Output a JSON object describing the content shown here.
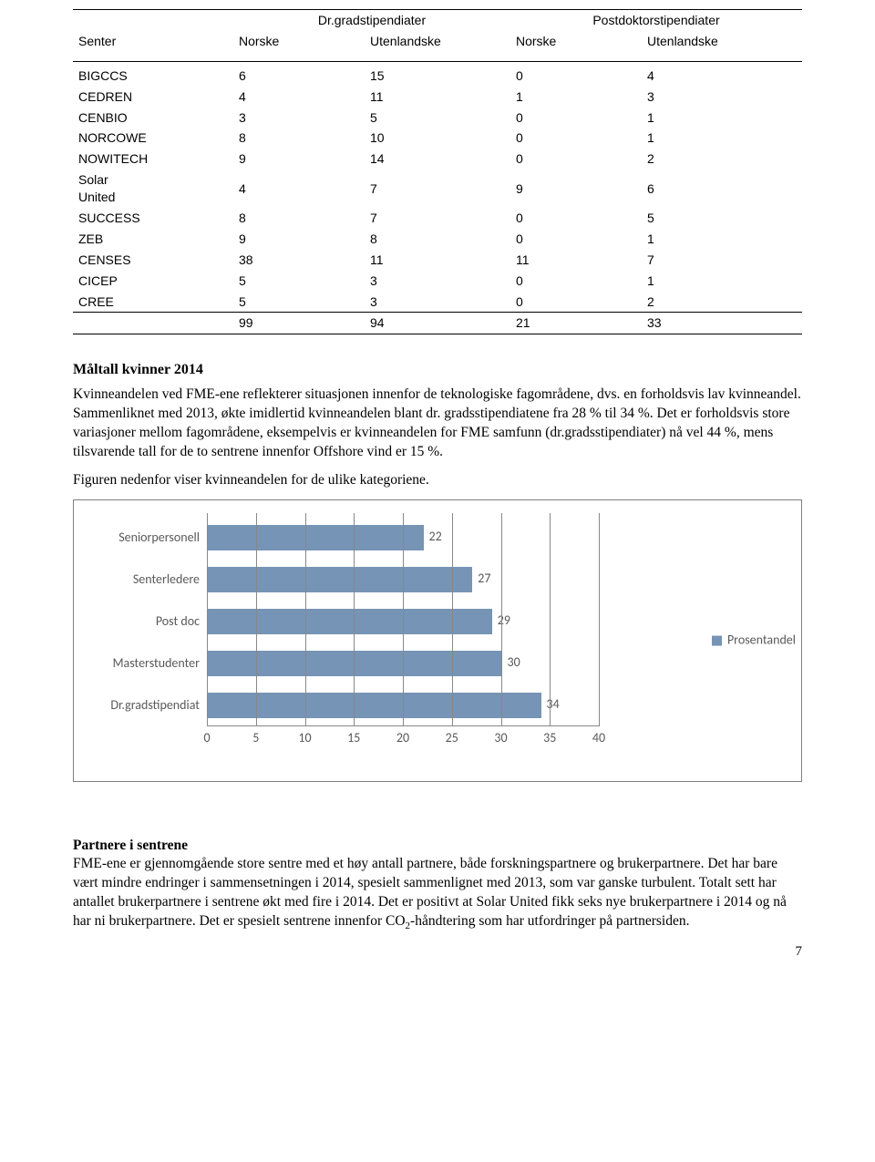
{
  "table": {
    "group_headers": [
      "Dr.gradstipendiater",
      "Postdoktorstipendiater"
    ],
    "sub_headers": [
      "Senter",
      "Norske",
      "Utenlandske",
      "Norske",
      "Utenlandske"
    ],
    "rows": [
      {
        "name": "BIGCCS",
        "v": [
          6,
          15,
          0,
          4
        ]
      },
      {
        "name": "CEDREN",
        "v": [
          4,
          11,
          1,
          3
        ]
      },
      {
        "name": "CENBIO",
        "v": [
          3,
          5,
          0,
          1
        ]
      },
      {
        "name": "NORCOWE",
        "v": [
          8,
          10,
          0,
          1
        ]
      },
      {
        "name": "NOWITECH",
        "v": [
          9,
          14,
          0,
          2
        ]
      },
      {
        "name": "Solar United",
        "v": [
          4,
          7,
          9,
          6
        ]
      },
      {
        "name": "SUCCESS",
        "v": [
          8,
          7,
          0,
          5
        ]
      },
      {
        "name": "ZEB",
        "v": [
          9,
          8,
          0,
          1
        ]
      },
      {
        "name": "CENSES",
        "v": [
          38,
          11,
          11,
          7
        ]
      },
      {
        "name": "CICEP",
        "v": [
          5,
          3,
          0,
          1
        ]
      },
      {
        "name": "CREE",
        "v": [
          5,
          3,
          0,
          2
        ]
      }
    ],
    "totals": [
      99,
      94,
      21,
      33
    ]
  },
  "section1_title": "Måltall kvinner 2014",
  "section1_body1": "Kvinneandelen ved FME-ene reflekterer situasjonen innenfor de teknologiske fagområdene, dvs. en forholdsvis lav kvinneandel. Sammenliknet med 2013, økte imidlertid kvinneandelen blant dr. gradsstipendiatene fra 28 % til 34 %. Det er forholdsvis store variasjoner mellom fagområdene, eksempelvis er kvinneandelen for FME samfunn (dr.gradsstipendiater) nå vel 44 %, mens tilsvarende tall for de to sentrene innenfor Offshore vind er 15 %.",
  "section1_body2": "Figuren nedenfor viser kvinneandelen for de ulike kategoriene.",
  "chart": {
    "type": "horizontal-bar",
    "xmin": 0,
    "xmax": 40,
    "xtick_step": 5,
    "bar_color": "#7694b5",
    "grid_color": "#888888",
    "label_color": "#595959",
    "label_fontsize": 14,
    "categories": [
      "Seniorpersonell",
      "Senterledere",
      "Post doc",
      "Masterstudenter",
      "Dr.gradstipendiat"
    ],
    "values": [
      22,
      27,
      29,
      30,
      34
    ],
    "legend": "Prosentandel"
  },
  "section2_title": "Partnere i sentrene",
  "section2_body_pre": "FME-ene er gjennomgående store sentre med et høy antall partnere, både forskningspartnere og brukerpartnere. Det har bare vært mindre endringer i sammensetningen i 2014, spesielt sammenlignet med 2013, som var ganske turbulent. Totalt sett har antallet brukerpartnere i sentrene økt med fire i 2014. Det er positivt at Solar United fikk seks nye brukerpartnere i 2014 og nå har ni brukerpartnere. Det er spesielt sentrene innenfor CO",
  "section2_body_sub": "2",
  "section2_body_post": "-håndtering som har utfordringer på partnersiden.",
  "page_number": "7"
}
